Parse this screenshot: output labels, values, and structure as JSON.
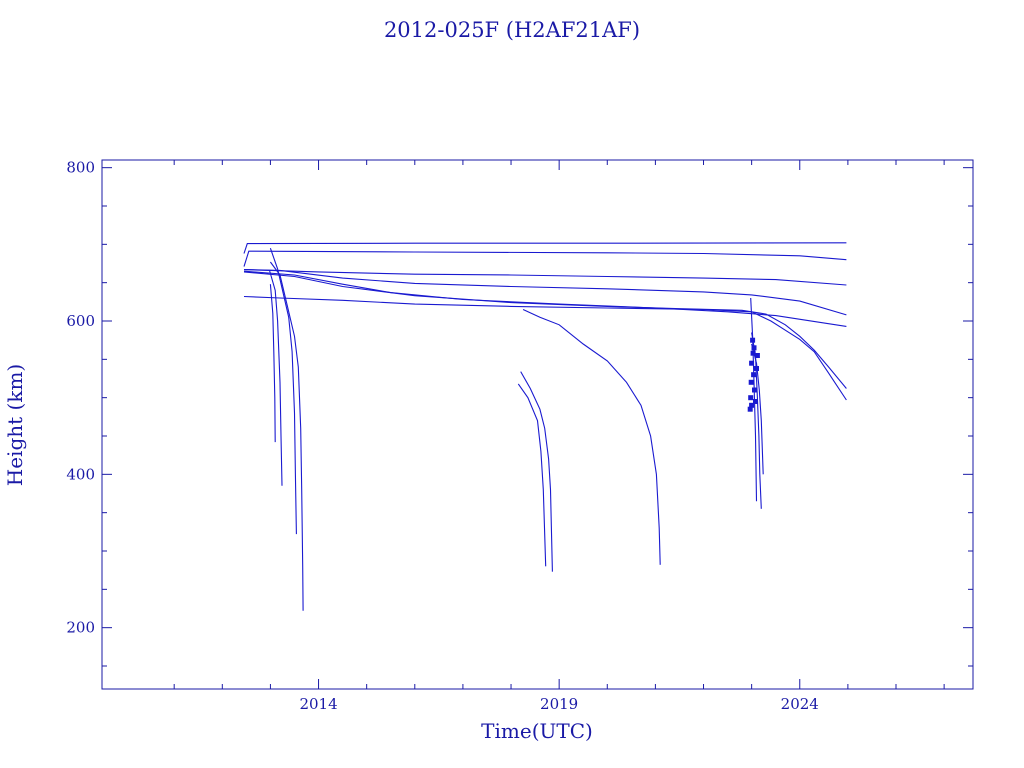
{
  "chart_data": {
    "type": "line",
    "title": "2012-025F (H2AF21AF)",
    "xlabel": "Time(UTC)",
    "ylabel": "Height (km)",
    "xlim": [
      2009.5,
      2027.6
    ],
    "ylim": [
      120,
      810
    ],
    "x_major_ticks": [
      2014,
      2019,
      2024
    ],
    "x_minor_ticks": [
      2011,
      2012,
      2013,
      2015,
      2016,
      2017,
      2018,
      2020,
      2021,
      2022,
      2023,
      2025,
      2026,
      2027
    ],
    "y_major_ticks": [
      200,
      400,
      600,
      800
    ],
    "y_minor_ticks": [
      150,
      250,
      300,
      350,
      450,
      500,
      550,
      650,
      700,
      750
    ],
    "grid": false,
    "legend": "none",
    "color": "#1a1ad0",
    "series": [
      {
        "values": [
          [
            2012.45,
            688
          ],
          [
            2012.52,
            701
          ],
          [
            2016,
            701.5
          ],
          [
            2020,
            701.5
          ],
          [
            2024.97,
            702
          ]
        ]
      },
      {
        "values": [
          [
            2012.45,
            671
          ],
          [
            2012.55,
            691
          ],
          [
            2016,
            690
          ],
          [
            2020,
            689
          ],
          [
            2022,
            688
          ],
          [
            2024,
            685
          ],
          [
            2024.97,
            680
          ]
        ]
      },
      {
        "values": [
          [
            2012.45,
            667
          ],
          [
            2014,
            664
          ],
          [
            2016,
            661
          ],
          [
            2018,
            660
          ],
          [
            2020,
            658
          ],
          [
            2022,
            656
          ],
          [
            2023.5,
            654
          ],
          [
            2024.97,
            647
          ]
        ]
      },
      {
        "values": [
          [
            2012.45,
            667
          ],
          [
            2013.2,
            666
          ],
          [
            2014.5,
            656
          ],
          [
            2016,
            649
          ],
          [
            2018,
            645
          ],
          [
            2020,
            642
          ],
          [
            2022,
            638
          ],
          [
            2023,
            634
          ],
          [
            2024,
            626
          ],
          [
            2024.97,
            608
          ]
        ]
      },
      {
        "values": [
          [
            2012.45,
            665
          ],
          [
            2013.5,
            660
          ],
          [
            2014.5,
            648
          ],
          [
            2015.5,
            637
          ],
          [
            2017,
            628
          ],
          [
            2019,
            622
          ],
          [
            2021,
            617
          ],
          [
            2022.5,
            612
          ],
          [
            2023.5,
            607
          ],
          [
            2024.97,
            593
          ]
        ]
      },
      {
        "values": [
          [
            2012.45,
            664
          ],
          [
            2013.5,
            658
          ],
          [
            2014.5,
            645
          ],
          [
            2016,
            633
          ],
          [
            2018,
            624
          ],
          [
            2020,
            619
          ],
          [
            2021.5,
            616
          ],
          [
            2022.8,
            614
          ],
          [
            2023.3,
            609
          ],
          [
            2023.7,
            595
          ],
          [
            2024,
            580
          ],
          [
            2024.3,
            562
          ],
          [
            2024.6,
            540
          ],
          [
            2024.97,
            512
          ]
        ]
      },
      {
        "values": [
          [
            2012.45,
            632
          ],
          [
            2013.2,
            630
          ],
          [
            2014.5,
            627
          ],
          [
            2016,
            622
          ],
          [
            2018,
            619
          ],
          [
            2020,
            617
          ],
          [
            2022,
            615
          ],
          [
            2023,
            612
          ],
          [
            2023.4,
            600
          ],
          [
            2023.7,
            588
          ],
          [
            2024,
            576
          ],
          [
            2024.3,
            560
          ],
          [
            2024.6,
            532
          ],
          [
            2024.97,
            497
          ]
        ]
      },
      {
        "values": [
          [
            2013.0,
            677
          ],
          [
            2013.2,
            660
          ],
          [
            2013.35,
            620
          ],
          [
            2013.5,
            580
          ],
          [
            2013.58,
            540
          ],
          [
            2013.63,
            460
          ],
          [
            2013.65,
            380
          ],
          [
            2013.67,
            280
          ],
          [
            2013.68,
            222
          ]
        ]
      },
      {
        "values": [
          [
            2013.0,
            695
          ],
          [
            2013.15,
            668
          ],
          [
            2013.25,
            640
          ],
          [
            2013.38,
            605
          ],
          [
            2013.45,
            560
          ],
          [
            2013.5,
            480
          ],
          [
            2013.52,
            400
          ],
          [
            2013.54,
            322
          ]
        ]
      },
      {
        "values": [
          [
            2012.98,
            666
          ],
          [
            2013.1,
            640
          ],
          [
            2013.15,
            600
          ],
          [
            2013.2,
            520
          ],
          [
            2013.22,
            450
          ],
          [
            2013.24,
            385
          ]
        ]
      },
      {
        "values": [
          [
            2013.0,
            648
          ],
          [
            2013.05,
            610
          ],
          [
            2013.07,
            560
          ],
          [
            2013.09,
            500
          ],
          [
            2013.1,
            442
          ]
        ]
      },
      {
        "values": [
          [
            2018.2,
            534
          ],
          [
            2018.4,
            512
          ],
          [
            2018.6,
            485
          ],
          [
            2018.7,
            460
          ],
          [
            2018.78,
            420
          ],
          [
            2018.82,
            380
          ],
          [
            2018.86,
            273
          ]
        ]
      },
      {
        "values": [
          [
            2018.15,
            518
          ],
          [
            2018.35,
            500
          ],
          [
            2018.55,
            470
          ],
          [
            2018.62,
            430
          ],
          [
            2018.67,
            380
          ],
          [
            2018.72,
            280
          ]
        ]
      },
      {
        "values": [
          [
            2018.25,
            615
          ],
          [
            2018.6,
            605
          ],
          [
            2019.0,
            595
          ],
          [
            2019.5,
            570
          ],
          [
            2020.0,
            548
          ],
          [
            2020.4,
            520
          ],
          [
            2020.7,
            490
          ],
          [
            2020.9,
            450
          ],
          [
            2021.02,
            400
          ],
          [
            2021.08,
            330
          ],
          [
            2021.1,
            282
          ]
        ]
      },
      {
        "values": [
          [
            2023.0,
            585
          ],
          [
            2023.08,
            555
          ],
          [
            2023.12,
            500
          ],
          [
            2023.15,
            450
          ],
          [
            2023.17,
            400
          ],
          [
            2023.2,
            355
          ]
        ]
      },
      {
        "values": [
          [
            2022.98,
            630
          ],
          [
            2023.02,
            580
          ],
          [
            2023.05,
            520
          ],
          [
            2023.08,
            450
          ],
          [
            2023.1,
            365
          ]
        ]
      },
      {
        "values": [
          [
            2023.0,
            570
          ],
          [
            2023.1,
            545
          ],
          [
            2023.16,
            510
          ],
          [
            2023.2,
            470
          ],
          [
            2023.24,
            400
          ]
        ]
      }
    ],
    "markers": [
      [
        2022.97,
        485
      ],
      [
        2022.98,
        500
      ],
      [
        2022.99,
        520
      ],
      [
        2023.0,
        545
      ],
      [
        2023.02,
        575
      ],
      [
        2023.03,
        558
      ],
      [
        2023.04,
        530
      ],
      [
        2023.06,
        510
      ],
      [
        2023.08,
        495
      ],
      [
        2023.1,
        538
      ],
      [
        2023.12,
        555
      ],
      [
        2023.0,
        490
      ],
      [
        2023.05,
        565
      ]
    ]
  }
}
